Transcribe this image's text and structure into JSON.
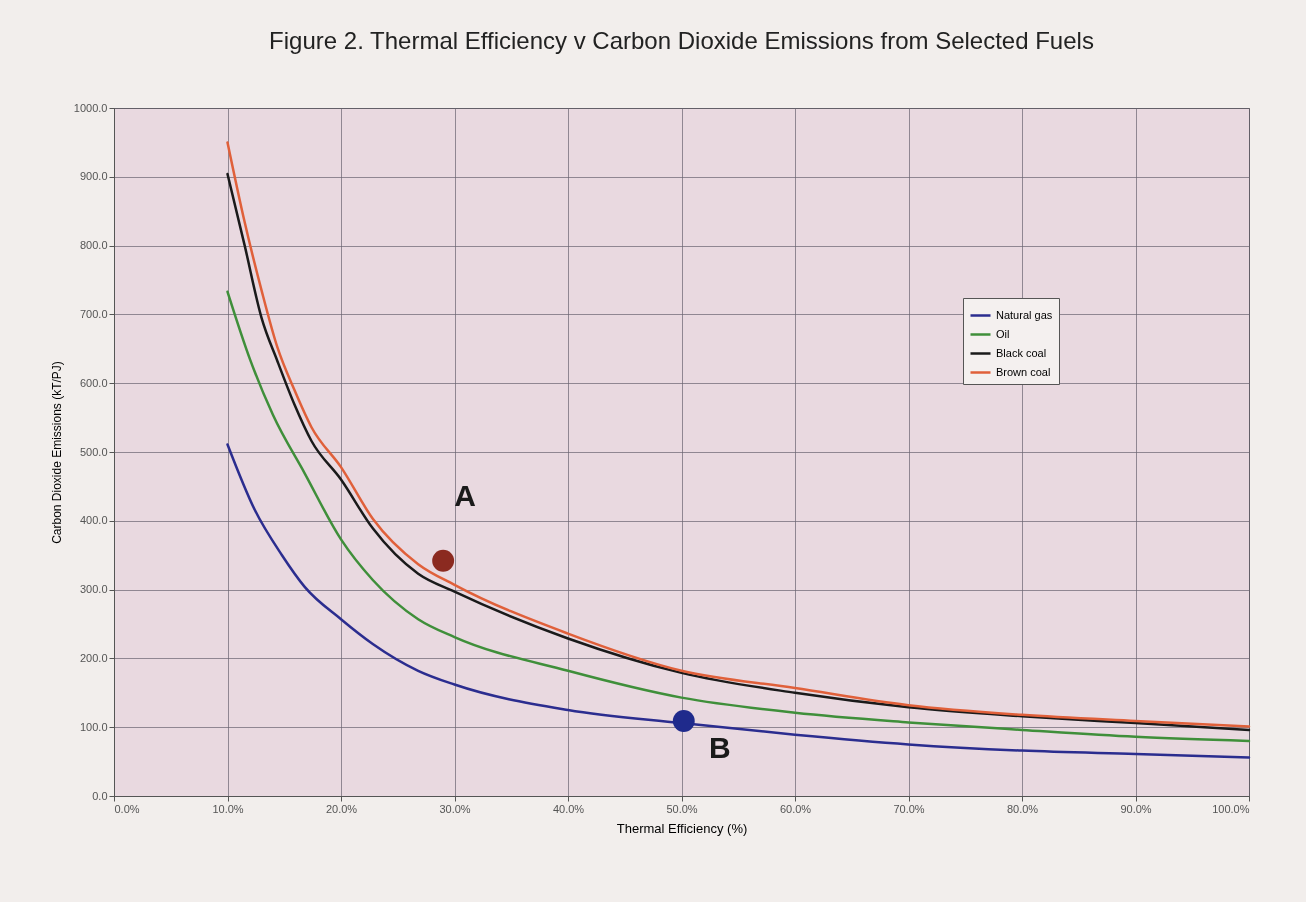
{
  "chart_data": {
    "type": "line",
    "title": "Figure 2. Thermal Efficiency v Carbon Dioxide Emissions from Selected Fuels",
    "xlabel": "Thermal Efficiency (%)",
    "ylabel": "Carbon Dioxide Emissions (kT/PJ)",
    "xlim": [
      0,
      100
    ],
    "xticks": [
      {
        "value": 0,
        "label": "0.0%"
      },
      {
        "value": 10,
        "label": "10.0%"
      },
      {
        "value": 20,
        "label": "20.0%"
      },
      {
        "value": 30,
        "label": "30.0%"
      },
      {
        "value": 40,
        "label": "40.0%"
      },
      {
        "value": 50,
        "label": "50.0%"
      },
      {
        "value": 60,
        "label": "60.0%"
      },
      {
        "value": 70,
        "label": "70.0%"
      },
      {
        "value": 80,
        "label": "80.0%"
      },
      {
        "value": 90,
        "label": "90.0%"
      },
      {
        "value": 100,
        "label": "100.0%"
      }
    ],
    "ylim": [
      0,
      1000
    ],
    "yticks": [
      {
        "value": 0,
        "label": "0.0"
      },
      {
        "value": 100,
        "label": "100.0"
      },
      {
        "value": 200,
        "label": "200.0"
      },
      {
        "value": 300,
        "label": "300.0"
      },
      {
        "value": 400,
        "label": "400.0"
      },
      {
        "value": 500,
        "label": "500.0"
      },
      {
        "value": 600,
        "label": "600.0"
      },
      {
        "value": 700,
        "label": "700.0"
      },
      {
        "value": 800,
        "label": "800.0"
      },
      {
        "value": 900,
        "label": "900.0"
      },
      {
        "value": 1000,
        "label": "1000.0"
      }
    ],
    "grid": true,
    "legend": "top right",
    "series": [
      {
        "name": "Natural gas",
        "color": "#2b2d8f",
        "x": [
          10,
          12.4,
          14.8,
          16.8,
          20,
          22.8,
          26.8,
          30,
          40,
          50,
          60,
          70,
          80,
          90,
          100
        ],
        "values": [
          511,
          416,
          350,
          304,
          257,
          221,
          182,
          162,
          125,
          106,
          89,
          75,
          66,
          61,
          56
        ]
      },
      {
        "name": "Oil",
        "color": "#3f8f3a",
        "x": [
          10,
          12,
          14,
          16.8,
          20,
          22.8,
          26.8,
          30,
          40,
          50,
          60,
          70,
          80,
          90,
          100
        ],
        "values": [
          733,
          634,
          554,
          469,
          373,
          314,
          257,
          231,
          182,
          143,
          121,
          107,
          96,
          86,
          80
        ]
      },
      {
        "name": "Black coal",
        "color": "#1a1a1a",
        "x": [
          10,
          11.5,
          13,
          14.4,
          15.9,
          17.4,
          20,
          22.8,
          26.8,
          30,
          40,
          50,
          60,
          70,
          80,
          90,
          100
        ],
        "values": [
          904,
          801,
          695,
          632,
          569,
          516,
          460,
          389,
          323,
          297,
          229,
          179,
          150,
          129,
          116,
          106,
          96
        ]
      },
      {
        "name": "Brown coal",
        "color": "#e0603a",
        "x": [
          10,
          11.5,
          13,
          14.4,
          15.9,
          17.4,
          20,
          22.8,
          26.8,
          30,
          40,
          50,
          60,
          70,
          80,
          90,
          100
        ],
        "values": [
          950,
          835,
          735,
          652,
          590,
          536,
          478,
          403,
          337,
          307,
          236,
          182,
          157,
          132,
          118,
          109,
          101
        ]
      },
      {
        "type": "scatter",
        "marker": "circle",
        "color": "#8b2a20",
        "x": [
          29
        ],
        "values": [
          342
        ]
      },
      {
        "type": "scatter",
        "marker": "circle",
        "color": "#1f2a8c",
        "x": [
          50.2
        ],
        "values": [
          109
        ]
      }
    ],
    "annotations": [
      {
        "text": "A",
        "x": 29,
        "y": 342
      },
      {
        "text": "B",
        "x": 50.2,
        "y": 109
      }
    ]
  }
}
